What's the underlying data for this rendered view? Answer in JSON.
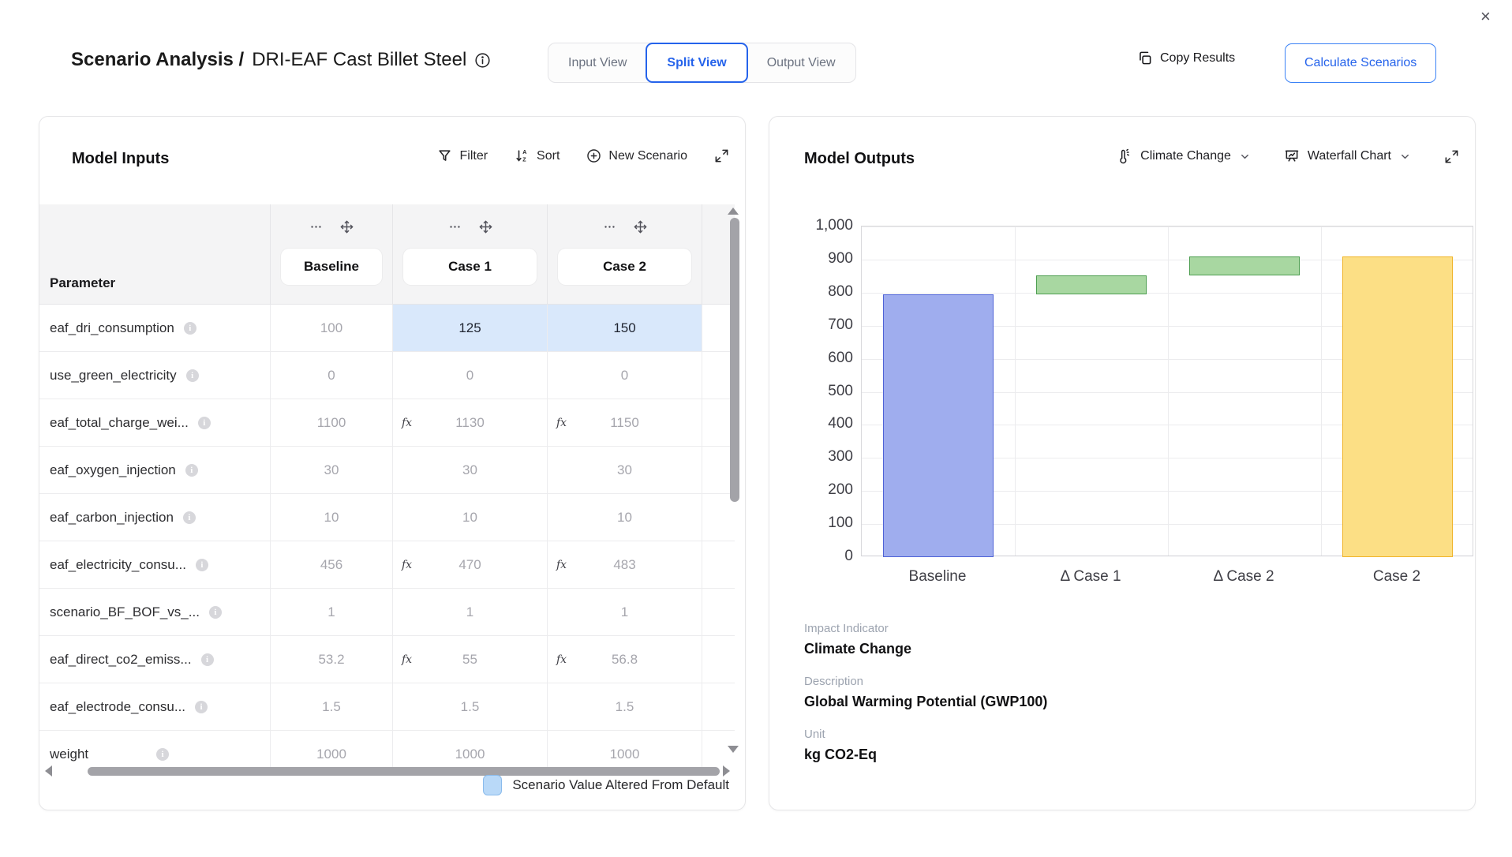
{
  "window": {
    "close_glyph": "×"
  },
  "header": {
    "title_bold": "Scenario Analysis /",
    "title_regular": "DRI-EAF Cast Billet Steel",
    "view_tabs": [
      {
        "label": "Input View"
      },
      {
        "label": "Split View"
      },
      {
        "label": "Output View"
      }
    ],
    "active_tab": "Split View",
    "copy_results_label": "Copy Results",
    "calculate_label": "Calculate Scenarios"
  },
  "inputs_panel": {
    "title": "Model Inputs",
    "toolbar": {
      "filter": "Filter",
      "sort": "Sort",
      "new_scenario": "New Scenario"
    },
    "table": {
      "param_header": "Parameter",
      "columns": [
        "Baseline",
        "Case 1",
        "Case 2"
      ],
      "rows": [
        {
          "name": "eaf_dri_consumption",
          "cells": [
            {
              "value": "100",
              "muted": true
            },
            {
              "value": "125",
              "highlight": true
            },
            {
              "value": "150",
              "highlight": true
            }
          ]
        },
        {
          "name": "use_green_electricity",
          "cells": [
            {
              "value": "0",
              "muted": true
            },
            {
              "value": "0",
              "muted": true
            },
            {
              "value": "0",
              "muted": true
            }
          ]
        },
        {
          "name": "eaf_total_charge_wei...",
          "cells": [
            {
              "value": "1100",
              "muted": true
            },
            {
              "value": "1130",
              "muted": true,
              "fx": true
            },
            {
              "value": "1150",
              "muted": true,
              "fx": true
            }
          ]
        },
        {
          "name": "eaf_oxygen_injection",
          "cells": [
            {
              "value": "30",
              "muted": true
            },
            {
              "value": "30",
              "muted": true
            },
            {
              "value": "30",
              "muted": true
            }
          ]
        },
        {
          "name": "eaf_carbon_injection",
          "cells": [
            {
              "value": "10",
              "muted": true
            },
            {
              "value": "10",
              "muted": true
            },
            {
              "value": "10",
              "muted": true
            }
          ]
        },
        {
          "name": "eaf_electricity_consu...",
          "cells": [
            {
              "value": "456",
              "muted": true
            },
            {
              "value": "470",
              "muted": true,
              "fx": true
            },
            {
              "value": "483",
              "muted": true,
              "fx": true
            }
          ]
        },
        {
          "name": "scenario_BF_BOF_vs_...",
          "cells": [
            {
              "value": "1",
              "muted": true
            },
            {
              "value": "1",
              "muted": true
            },
            {
              "value": "1",
              "muted": true
            }
          ]
        },
        {
          "name": "eaf_direct_co2_emiss...",
          "cells": [
            {
              "value": "53.2",
              "muted": true
            },
            {
              "value": "55",
              "muted": true,
              "fx": true
            },
            {
              "value": "56.8",
              "muted": true,
              "fx": true
            }
          ]
        },
        {
          "name": "eaf_electrode_consu...",
          "cells": [
            {
              "value": "1.5",
              "muted": true
            },
            {
              "value": "1.5",
              "muted": true
            },
            {
              "value": "1.5",
              "muted": true
            }
          ]
        },
        {
          "name": "weight",
          "cells": [
            {
              "value": "1000",
              "muted": true
            },
            {
              "value": "1000",
              "muted": true
            },
            {
              "value": "1000",
              "muted": true
            }
          ]
        }
      ]
    },
    "legend": {
      "label": "Scenario Value Altered From Default",
      "swatch_color": "#b9d9f8"
    }
  },
  "outputs_panel": {
    "title": "Model Outputs",
    "indicator_dropdown": "Climate Change",
    "chart_type_dropdown": "Waterfall Chart",
    "info": [
      {
        "label": "Impact Indicator",
        "value": "Climate Change"
      },
      {
        "label": "Description",
        "value": "Global Warming Potential (GWP100)"
      },
      {
        "label": "Unit",
        "value": "kg CO2-Eq"
      }
    ]
  },
  "chart_data": {
    "type": "bar",
    "subtype": "waterfall",
    "categories": [
      "Baseline",
      "Δ Case 1",
      "Δ Case 2",
      "Case 2"
    ],
    "bars": [
      {
        "label": "Baseline",
        "start": 0,
        "end": 795,
        "fill": "#9fadee",
        "stroke": "#4f63d6"
      },
      {
        "label": "Δ Case 1",
        "start": 795,
        "end": 852,
        "fill": "#a8d7a1",
        "stroke": "#4d9e50"
      },
      {
        "label": "Δ Case 2",
        "start": 852,
        "end": 910,
        "fill": "#a8d7a1",
        "stroke": "#4d9e50"
      },
      {
        "label": "Case 2",
        "start": 0,
        "end": 910,
        "fill": "#fcdf85",
        "stroke": "#f0b429"
      }
    ],
    "ylim": [
      0,
      1000
    ],
    "ytick_step": 100,
    "grid": true,
    "legend_position": "none",
    "ylabel": "",
    "xlabel": "",
    "unit": "kg CO2-Eq"
  },
  "icons": {
    "fx": "fx",
    "info": "i"
  },
  "colors": {
    "accent_blue": "#2563eb",
    "cell_highlight": "#d9e8fb",
    "bar_baseline_fill": "#9fadee",
    "bar_delta_fill": "#a8d7a1",
    "bar_total_fill": "#fcdf85"
  }
}
